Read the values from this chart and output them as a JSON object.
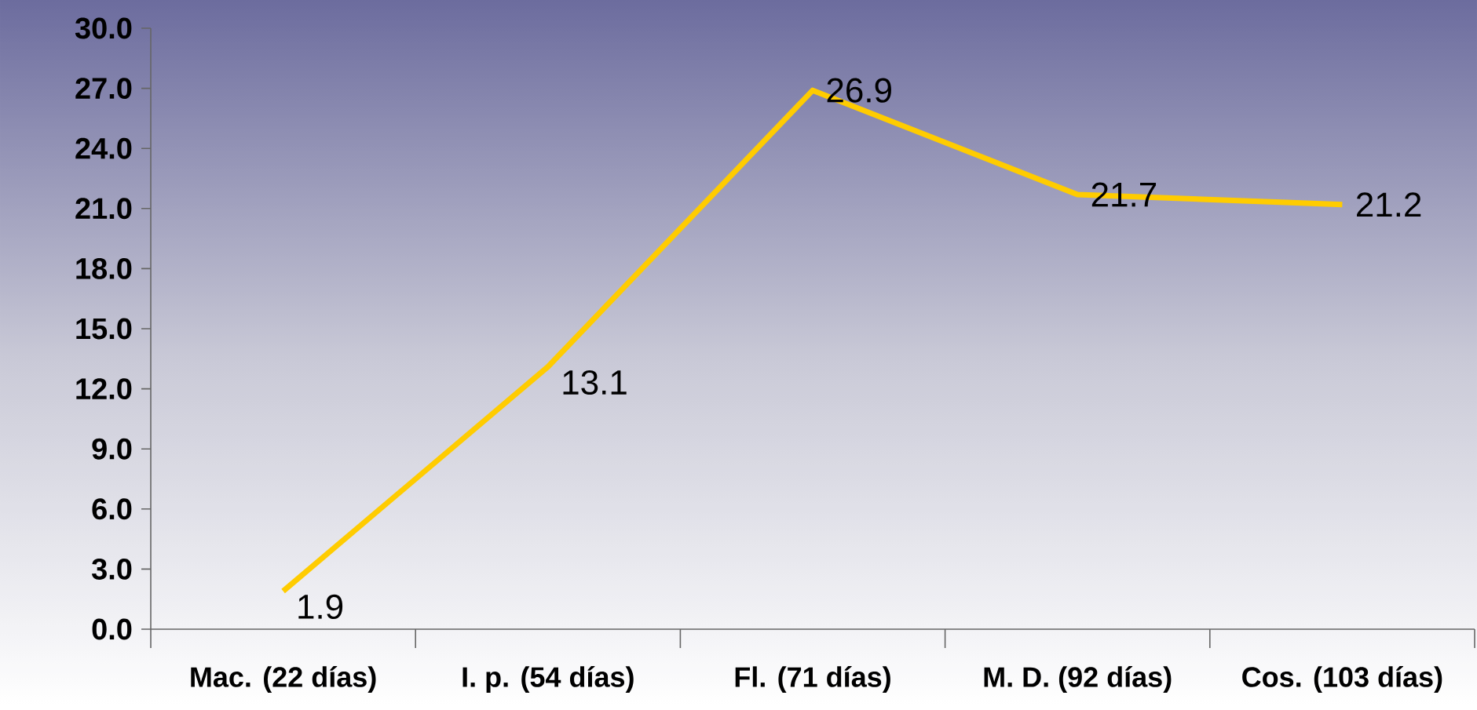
{
  "chart_data": {
    "type": "line",
    "categories": [
      "Mac. (22 días)",
      "I. p. (54 días)",
      "Fl. (71 días)",
      "M. D. (92 días)",
      "Cos. (103 días)"
    ],
    "values": [
      1.9,
      13.1,
      26.9,
      21.7,
      21.2
    ],
    "value_labels": [
      "1.9",
      "13.1",
      "26.9",
      "21.7",
      "21.2"
    ],
    "color": "#ffcc00",
    "ylim": [
      0,
      30
    ],
    "yticks": [
      {
        "value": 0,
        "label": "0.0"
      },
      {
        "value": 3,
        "label": "3.0"
      },
      {
        "value": 6,
        "label": "6.0"
      },
      {
        "value": 9,
        "label": "9.0"
      },
      {
        "value": 12,
        "label": "12.0"
      },
      {
        "value": 15,
        "label": "15.0"
      },
      {
        "value": 18,
        "label": "18.0"
      },
      {
        "value": 21,
        "label": "21.0"
      },
      {
        "value": 24,
        "label": "24.0"
      },
      {
        "value": 27,
        "label": "27.0"
      },
      {
        "value": 30,
        "label": "30.0"
      }
    ],
    "grid": false,
    "marker": "none",
    "line_style": "solid"
  }
}
